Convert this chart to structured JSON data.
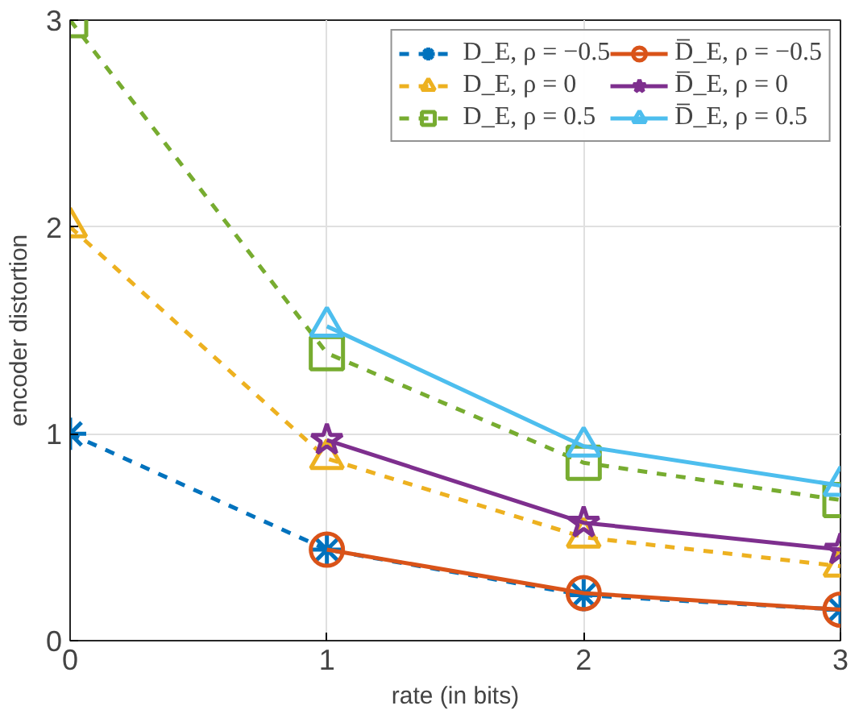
{
  "chart_data": {
    "type": "line",
    "xlabel": "rate (in bits)",
    "ylabel": "encoder distortion",
    "x": [
      0,
      1,
      2,
      3
    ],
    "xlim": [
      0,
      3
    ],
    "ylim": [
      0,
      3
    ],
    "xticks": [
      0,
      1,
      2,
      3
    ],
    "yticks": [
      0,
      1,
      2,
      3
    ],
    "grid": true,
    "legend": "top right",
    "series": [
      {
        "name": "D_E, ρ = −0.5",
        "color": "#0072bd",
        "marker": "cross",
        "line_style": "dashed",
        "values": [
          1.0,
          0.44,
          0.22,
          0.15
        ]
      },
      {
        "name": "D_E, ρ = 0",
        "color": "#edb120",
        "marker": "triangle",
        "line_style": "dashed",
        "values": [
          2.0,
          0.88,
          0.5,
          0.36
        ]
      },
      {
        "name": "D_E, ρ = 0.5",
        "color": "#77ac30",
        "marker": "square",
        "line_style": "dashed",
        "values": [
          3.0,
          1.39,
          0.86,
          0.68
        ]
      },
      {
        "name": "D̅_E, ρ = −0.5",
        "color": "#d95319",
        "marker": "circle",
        "line_style": "solid",
        "x": [
          1,
          2,
          3
        ],
        "values": [
          0.44,
          0.23,
          0.15
        ]
      },
      {
        "name": "D̅_E, ρ = 0",
        "color": "#7e2f8e",
        "marker": "star",
        "line_style": "solid",
        "x": [
          1,
          2,
          3
        ],
        "values": [
          0.97,
          0.57,
          0.44
        ]
      },
      {
        "name": "D̅_E, ρ = 0.5",
        "color": "#4dbeee",
        "marker": "triangle",
        "line_style": "solid",
        "x": [
          1,
          2,
          3
        ],
        "values": [
          1.52,
          0.94,
          0.75
        ]
      }
    ]
  }
}
